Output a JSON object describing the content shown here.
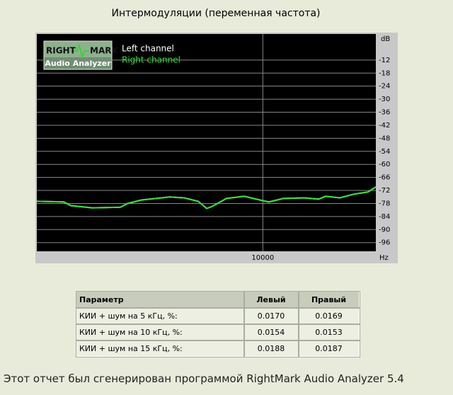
{
  "chart_data": {
    "type": "line",
    "title": "Интермодуляции (переменная частота)",
    "y_label": "dB",
    "x_label": "Hz",
    "logo": [
      "RIGHT",
      "MARK",
      "Audio Analyzer"
    ],
    "x": [
      2500,
      2950,
      3080,
      3509,
      4174,
      4359,
      4753,
      5655,
      6166,
      6727,
      7087,
      7335,
      8002,
      8920,
      10000,
      10390,
      11330,
      12900,
      14070,
      14700,
      16030,
      17480,
      19060,
      20000
    ],
    "series": [
      {
        "name": "Left channel",
        "color": "#ffffff",
        "values": [
          -77.0,
          -77.3,
          -79.0,
          -80.0,
          -79.7,
          -78.0,
          -76.4,
          -75.0,
          -75.4,
          -77.0,
          -80.3,
          -79.3,
          -75.7,
          -74.7,
          -76.7,
          -77.3,
          -75.7,
          -75.4,
          -76.0,
          -74.7,
          -75.4,
          -73.7,
          -72.7,
          -70.4
        ]
      },
      {
        "name": "Right channel",
        "color": "#33dd33",
        "values": [
          -77.0,
          -77.3,
          -79.0,
          -80.0,
          -79.7,
          -78.0,
          -76.4,
          -75.0,
          -75.4,
          -77.0,
          -80.3,
          -79.3,
          -75.7,
          -74.7,
          -76.7,
          -77.3,
          -75.7,
          -75.4,
          -76.0,
          -74.7,
          -75.4,
          -73.7,
          -72.7,
          -70.4
        ]
      }
    ],
    "xlim": [
      2500,
      20000
    ],
    "xticks": [
      10000
    ],
    "xlog": true,
    "ylim": [
      -100,
      0
    ],
    "yticks": [
      -12,
      -18,
      -24,
      -30,
      -36,
      -42,
      -48,
      -54,
      -60,
      -66,
      -72,
      -78,
      -84,
      -90,
      -96
    ],
    "grid": true
  },
  "table": {
    "header": [
      "Параметр",
      "Левый",
      "Правый"
    ],
    "rows": [
      [
        "КИИ + шум на 5 кГц, %:",
        "0.0170",
        "0.0169"
      ],
      [
        "КИИ + шум на 10 кГц, %:",
        "0.0154",
        "0.0153"
      ],
      [
        "КИИ + шум на 15 кГц, %:",
        "0.0188",
        "0.0187"
      ]
    ]
  },
  "footer": "Этот отчет был сгенерирован программой RightMark Audio Analyzer 5.4"
}
